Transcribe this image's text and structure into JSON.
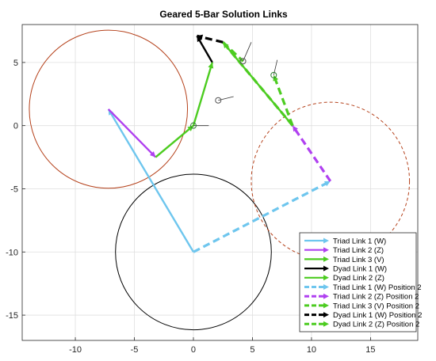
{
  "chart_data": {
    "type": "line",
    "title": "Geared 5-Bar Solution Links",
    "xlabel": "",
    "ylabel": "",
    "xlim": [
      -14.5,
      19
    ],
    "ylim": [
      -17,
      8
    ],
    "xticks": [
      -10,
      -5,
      0,
      5,
      10,
      15
    ],
    "yticks": [
      5,
      0,
      -5,
      -10,
      -15
    ],
    "grid": true,
    "legend_location": "bottom-right",
    "series": [
      {
        "name": "Triad Link 1 (W)",
        "color": "#6ec6ee",
        "style": "solid",
        "arrow": true,
        "points": [
          [
            0,
            -10
          ],
          [
            -7.2,
            1.3
          ]
        ]
      },
      {
        "name": "Triad Link 2 (Z)",
        "color": "#b040f0",
        "style": "solid",
        "arrow": true,
        "points": [
          [
            -7.2,
            1.3
          ],
          [
            -3.2,
            -2.5
          ]
        ]
      },
      {
        "name": "Triad Link 3 (V)",
        "color": "#4ccc20",
        "style": "solid",
        "arrow": true,
        "points": [
          [
            -3.2,
            -2.5
          ],
          [
            0,
            0
          ]
        ]
      },
      {
        "name": "Dyad Link 1 (W)",
        "color": "#000000",
        "style": "solid",
        "arrow": true,
        "points": [
          [
            1.6,
            5
          ],
          [
            0.3,
            7.1
          ]
        ]
      },
      {
        "name": "Dyad Link 2 (Z)",
        "color": "#4ccc20",
        "style": "solid",
        "arrow": true,
        "points": [
          [
            0,
            0
          ],
          [
            1.6,
            5
          ]
        ]
      },
      {
        "name": "Triad Link 1 (W) Position 2",
        "color": "#6ec6ee",
        "style": "dashed",
        "arrow": true,
        "points": [
          [
            0,
            -10
          ],
          [
            11.6,
            -4.4
          ]
        ]
      },
      {
        "name": "Triad Link 2 (Z) Position 2",
        "color": "#b040f0",
        "style": "dashed",
        "arrow": true,
        "points": [
          [
            11.6,
            -4.4
          ],
          [
            8.4,
            0
          ]
        ]
      },
      {
        "name": "Triad Link 3 (V) Position 2",
        "color": "#4ccc20",
        "style": "dashed",
        "arrow": true,
        "points": [
          [
            8.4,
            0
          ],
          [
            6.8,
            4
          ]
        ]
      },
      {
        "name": "Dyad Link 1 (W) Position 2",
        "color": "#000000",
        "style": "dashed",
        "arrow": true,
        "points": [
          [
            2.5,
            6.6
          ],
          [
            0.3,
            7.1
          ]
        ]
      },
      {
        "name": "Dyad Link 2 (Z) Position 2",
        "color": "#4ccc20",
        "style": "dashed",
        "arrow": true,
        "points": [
          [
            8.4,
            0
          ],
          [
            2.5,
            6.6
          ]
        ]
      }
    ],
    "extra_links": [
      {
        "color": "#4ccc20",
        "style": "solid",
        "points": [
          [
            8.4,
            0
          ],
          [
            2.5,
            6.6
          ]
        ]
      },
      {
        "color": "#4ccc20",
        "style": "dashed",
        "points": [
          [
            2.5,
            6.6
          ],
          [
            4.2,
            5.1
          ]
        ]
      }
    ],
    "circles": [
      {
        "center": [
          -7.2,
          1.3
        ],
        "radius": 6.7,
        "color": "#b5421c",
        "style": "solid"
      },
      {
        "center": [
          0,
          -10
        ],
        "radius": 6.6,
        "color": "#000000",
        "style": "solid"
      },
      {
        "center": [
          11.6,
          -4.4
        ],
        "radius": 6.7,
        "color": "#b5421c",
        "style": "dashed"
      }
    ],
    "markers": [
      {
        "point": [
          0,
          0
        ],
        "color": "#2e7d32"
      },
      {
        "point": [
          6.8,
          4
        ],
        "color": "#2e7d32"
      },
      {
        "point": [
          4.2,
          5.1
        ],
        "color": "#555555"
      },
      {
        "point": [
          2.1,
          2.0
        ],
        "color": "#555555"
      }
    ],
    "marker_ticks": [
      {
        "points": [
          [
            0,
            0
          ],
          [
            1.3,
            0
          ]
        ]
      },
      {
        "points": [
          [
            6.8,
            4
          ],
          [
            7.1,
            5.2
          ]
        ]
      },
      {
        "points": [
          [
            4.2,
            5.1
          ],
          [
            4.9,
            6.6
          ]
        ]
      },
      {
        "points": [
          [
            2.1,
            2.0
          ],
          [
            3.4,
            2.3
          ]
        ]
      }
    ]
  }
}
